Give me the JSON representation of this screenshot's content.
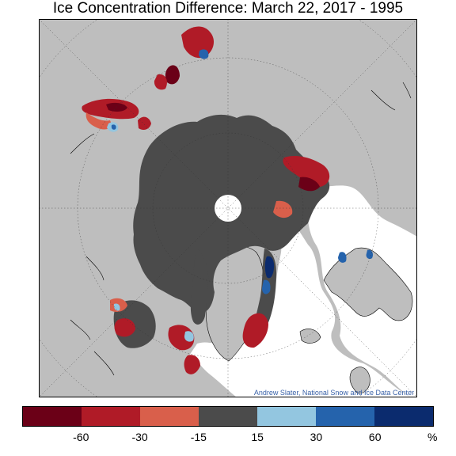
{
  "title": "Ice Concentration Difference: March 22, 2017 - 1995",
  "credit": "Andrew Slater, National Snow and Ice Data Center",
  "colors": {
    "land": "#bebebe",
    "ocean": "#ffffff",
    "ice_unchanged": "#4b4b4b",
    "pole_hole": "#ffffff",
    "coast": "#000000"
  },
  "legend": {
    "colors": [
      "#6b0017",
      "#b01b27",
      "#d95f4b",
      "#4b4b4b",
      "#93c6e0",
      "#2563ac",
      "#0b2b6e"
    ],
    "ticks": [
      "-60",
      "-30",
      "-15",
      "15",
      "30",
      "60"
    ],
    "unit": "%"
  }
}
